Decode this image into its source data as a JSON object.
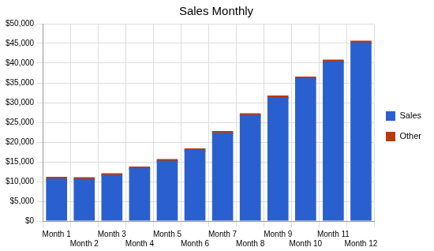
{
  "chart_data": {
    "type": "bar",
    "title": "Sales Monthly",
    "categories": [
      "Month 1",
      "Month 2",
      "Month 3",
      "Month 4",
      "Month 5",
      "Month 6",
      "Month 7",
      "Month 8",
      "Month 9",
      "Month 10",
      "Month 11",
      "Month 12"
    ],
    "series": [
      {
        "name": "Sales",
        "color": "#2a5fcf",
        "values": [
          10800,
          10700,
          11700,
          13400,
          15300,
          18000,
          22400,
          26900,
          31400,
          36200,
          40500,
          45300
        ]
      },
      {
        "name": "Other",
        "color": "#b83a0a",
        "values": [
          0,
          0,
          0,
          0,
          0,
          0,
          0,
          0,
          0,
          0,
          0,
          0
        ]
      }
    ],
    "stacked": true,
    "ylim": [
      0,
      50000
    ],
    "yticks": [
      {
        "value": 0,
        "label": "$0"
      },
      {
        "value": 5000,
        "label": "$5,000"
      },
      {
        "value": 10000,
        "label": "$10,000"
      },
      {
        "value": 15000,
        "label": "$15,000"
      },
      {
        "value": 20000,
        "label": "$20,000"
      },
      {
        "value": 25000,
        "label": "$25,000"
      },
      {
        "value": 30000,
        "label": "$30,000"
      },
      {
        "value": 35000,
        "label": "$35,000"
      },
      {
        "value": 40000,
        "label": "$40,000"
      },
      {
        "value": 45000,
        "label": "$45,000"
      },
      {
        "value": 50000,
        "label": "$50,000"
      }
    ],
    "grid": true,
    "legend": "right"
  }
}
